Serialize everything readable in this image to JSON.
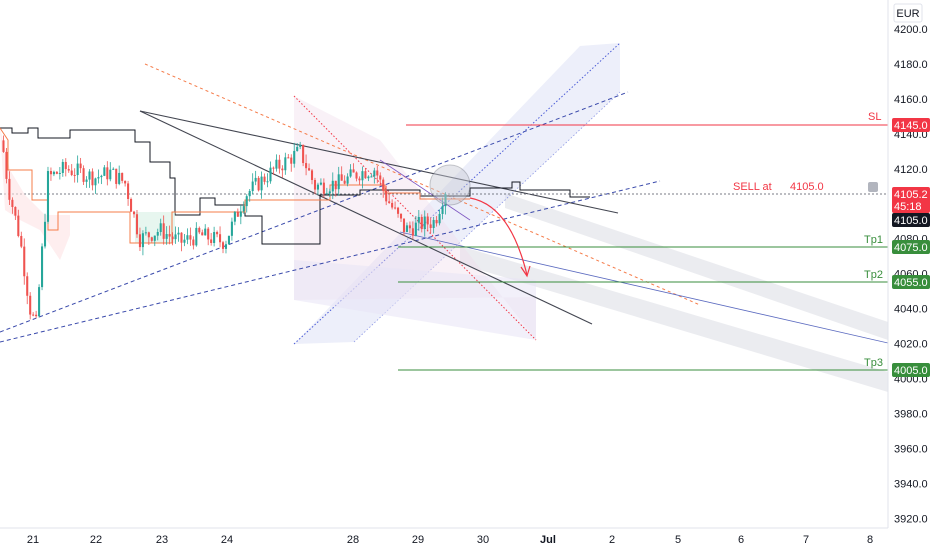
{
  "currency": "EUR",
  "chart_data": {
    "type": "candlestick",
    "y_ticks": [
      "4200.0",
      "4180.0",
      "4160.0",
      "4140.0",
      "4120.0",
      "4100.0",
      "4080.0",
      "4060.0",
      "4040.0",
      "4020.0",
      "4000.0",
      "3980.0",
      "3960.0",
      "3940.0",
      "3920.0"
    ],
    "ylim": [
      3914,
      4208
    ],
    "x_ticks": [
      "21",
      "22",
      "23",
      "24",
      "28",
      "29",
      "30",
      "Jul",
      "2",
      "5",
      "6",
      "7",
      "8"
    ],
    "price_boxes": {
      "sl": {
        "label": "SL",
        "value": "4145.0",
        "color": "#f23645"
      },
      "current": {
        "value": "4105.2",
        "countdown": "45:18",
        "color": "#f23645"
      },
      "entry": {
        "value": "4105.0",
        "color": "#131722"
      },
      "tp1": {
        "label": "Tp1",
        "value": "4075.0",
        "color": "#388e3c"
      },
      "tp2": {
        "label": "Tp2",
        "value": "4055.0",
        "color": "#388e3c"
      },
      "tp3": {
        "label": "Tp3",
        "value": "4005.0",
        "color": "#388e3c"
      }
    },
    "sell_label": "SELL at",
    "sell_price": "4105.0",
    "candles": {
      "count": 150,
      "up_color": "#26a69a",
      "down_color": "#ef5350"
    }
  }
}
